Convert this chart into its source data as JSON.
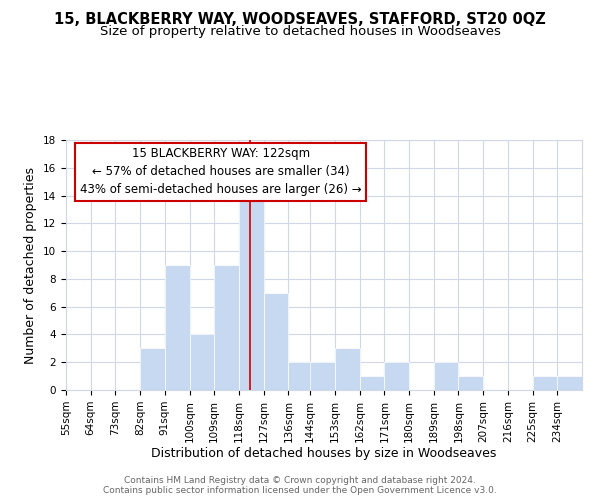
{
  "title": "15, BLACKBERRY WAY, WOODSEAVES, STAFFORD, ST20 0QZ",
  "subtitle": "Size of property relative to detached houses in Woodseaves",
  "xlabel": "Distribution of detached houses by size in Woodseaves",
  "ylabel": "Number of detached properties",
  "bin_edges": [
    55,
    64,
    73,
    82,
    91,
    100,
    109,
    118,
    127,
    136,
    144,
    153,
    162,
    171,
    180,
    189,
    198,
    207,
    216,
    225,
    234,
    243
  ],
  "bin_labels": [
    "55sqm",
    "64sqm",
    "73sqm",
    "82sqm",
    "91sqm",
    "100sqm",
    "109sqm",
    "118sqm",
    "127sqm",
    "136sqm",
    "144sqm",
    "153sqm",
    "162sqm",
    "171sqm",
    "180sqm",
    "189sqm",
    "198sqm",
    "207sqm",
    "216sqm",
    "225sqm",
    "234sqm"
  ],
  "counts": [
    0,
    0,
    0,
    3,
    9,
    4,
    9,
    14,
    7,
    2,
    2,
    3,
    1,
    2,
    0,
    2,
    1,
    0,
    0,
    1,
    1
  ],
  "bar_color": "#c6d9f0",
  "bar_edgecolor": "#ffffff",
  "property_line_x": 122,
  "property_line_color": "#cc0000",
  "annotation_title": "15 BLACKBERRY WAY: 122sqm",
  "annotation_line1": "← 57% of detached houses are smaller (34)",
  "annotation_line2": "43% of semi-detached houses are larger (26) →",
  "annotation_box_edgecolor": "#cc0000",
  "annotation_box_facecolor": "#ffffff",
  "ylim": [
    0,
    18
  ],
  "yticks": [
    0,
    2,
    4,
    6,
    8,
    10,
    12,
    14,
    16,
    18
  ],
  "footer_line1": "Contains HM Land Registry data © Crown copyright and database right 2024.",
  "footer_line2": "Contains public sector information licensed under the Open Government Licence v3.0.",
  "background_color": "#ffffff",
  "grid_color": "#d0d8e8",
  "title_fontsize": 10.5,
  "subtitle_fontsize": 9.5,
  "axis_label_fontsize": 9,
  "tick_fontsize": 7.5,
  "footer_fontsize": 6.5,
  "annotation_fontsize": 8.5
}
